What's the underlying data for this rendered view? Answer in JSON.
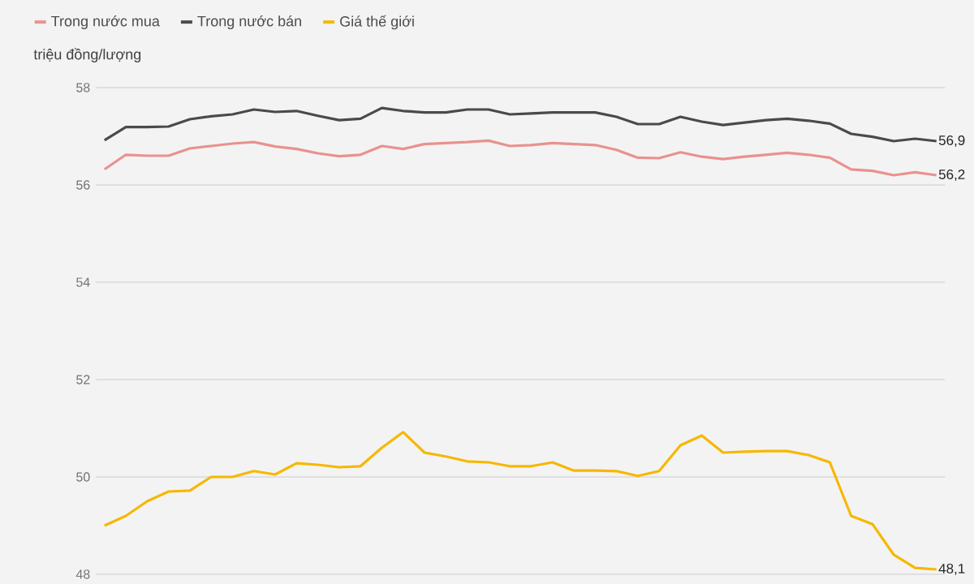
{
  "chart_data": {
    "type": "line",
    "ylabel": "triệu đồng/lượng",
    "categories": [
      null,
      null,
      null,
      null,
      null,
      null,
      null,
      null,
      null,
      null,
      null,
      null,
      null,
      null,
      null,
      null,
      null,
      null,
      null,
      null,
      null,
      null,
      null,
      null,
      null,
      null,
      null,
      null,
      null,
      null,
      null,
      null,
      null,
      null,
      null,
      null,
      null,
      null,
      null,
      null
    ],
    "series": [
      {
        "name": "Trong nước mua",
        "color": "#e8928f",
        "values": [
          56.32,
          56.62,
          56.6,
          56.6,
          56.75,
          56.8,
          56.85,
          56.88,
          56.79,
          56.74,
          56.65,
          56.59,
          56.62,
          56.8,
          56.74,
          56.84,
          56.86,
          56.88,
          56.91,
          56.8,
          56.82,
          56.86,
          56.84,
          56.82,
          56.72,
          56.56,
          56.55,
          56.67,
          56.58,
          56.53,
          56.58,
          56.62,
          56.66,
          56.62,
          56.56,
          56.32,
          56.29,
          56.2,
          56.26,
          56.2
        ],
        "value_labels": [
          null,
          null,
          null,
          null,
          null,
          null,
          null,
          null,
          null,
          null,
          null,
          null,
          null,
          null,
          null,
          null,
          null,
          null,
          null,
          null,
          null,
          null,
          null,
          null,
          null,
          null,
          null,
          null,
          null,
          null,
          null,
          null,
          null,
          null,
          null,
          null,
          null,
          null,
          null,
          "56,2"
        ]
      },
      {
        "name": "Trong nước bán",
        "color": "#4a4a4a",
        "values": [
          56.92,
          57.19,
          57.19,
          57.2,
          57.35,
          57.41,
          57.45,
          57.55,
          57.5,
          57.52,
          57.42,
          57.33,
          57.36,
          57.58,
          57.52,
          57.49,
          57.49,
          57.55,
          57.55,
          57.45,
          57.47,
          57.49,
          57.49,
          57.49,
          57.4,
          57.25,
          57.25,
          57.4,
          57.3,
          57.23,
          57.28,
          57.33,
          57.36,
          57.32,
          57.26,
          57.05,
          56.99,
          56.9,
          56.95,
          56.9
        ],
        "value_labels": [
          null,
          null,
          null,
          null,
          null,
          null,
          null,
          null,
          null,
          null,
          null,
          null,
          null,
          null,
          null,
          null,
          null,
          null,
          null,
          null,
          null,
          null,
          null,
          null,
          null,
          null,
          null,
          null,
          null,
          null,
          null,
          null,
          null,
          null,
          null,
          null,
          null,
          null,
          null,
          "56,9"
        ]
      },
      {
        "name": "Giá thế giới",
        "color": "#f5b800",
        "values": [
          49.0,
          49.2,
          49.5,
          49.7,
          49.72,
          50.0,
          50.0,
          50.12,
          50.05,
          50.28,
          50.25,
          50.2,
          50.22,
          50.6,
          50.92,
          50.5,
          50.42,
          50.32,
          50.3,
          50.22,
          50.22,
          50.3,
          50.13,
          50.13,
          50.12,
          50.02,
          50.12,
          50.65,
          50.85,
          50.5,
          50.52,
          50.53,
          50.53,
          50.45,
          50.3,
          49.2,
          49.03,
          48.4,
          48.13,
          48.1
        ],
        "value_labels": [
          null,
          null,
          null,
          null,
          null,
          null,
          null,
          null,
          null,
          null,
          null,
          null,
          null,
          null,
          null,
          null,
          null,
          null,
          null,
          null,
          null,
          null,
          null,
          null,
          null,
          null,
          null,
          null,
          null,
          null,
          null,
          null,
          null,
          null,
          null,
          null,
          null,
          null,
          null,
          "48,1"
        ]
      }
    ],
    "ylim": [
      48,
      58
    ],
    "yticks": [
      48,
      50,
      52,
      54,
      56,
      58
    ],
    "grid": "y",
    "legend": "top left",
    "marker": "none",
    "line_style": "solid"
  }
}
